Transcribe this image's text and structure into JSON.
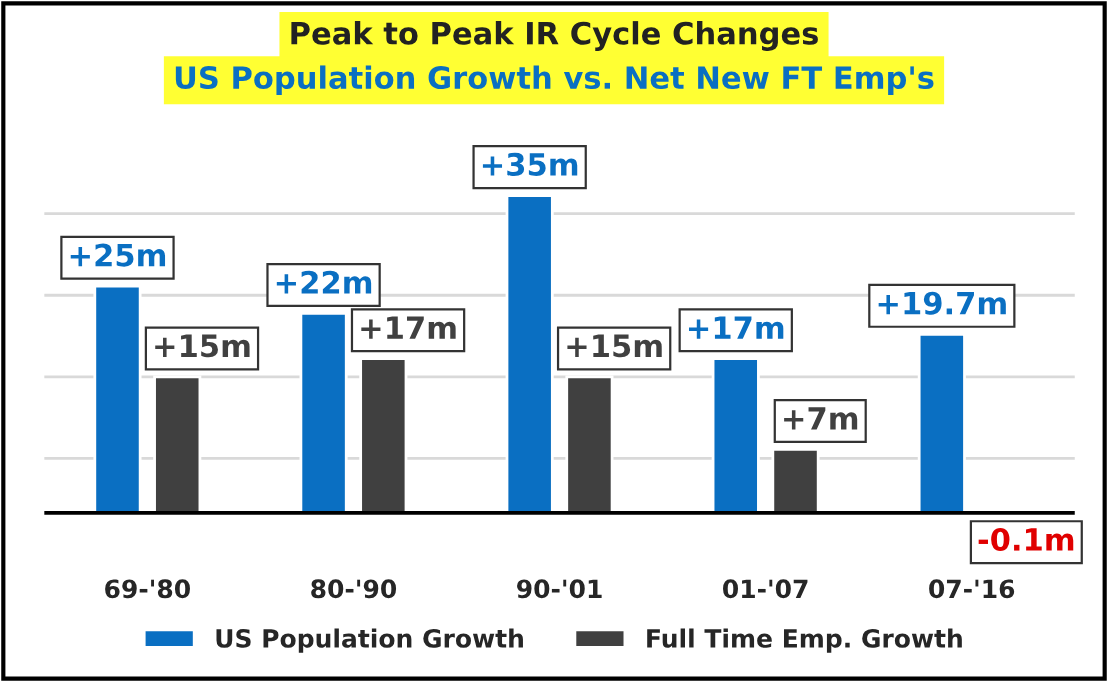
{
  "chart_data": {
    "type": "bar",
    "title": "Peak to Peak IR Cycle Changes",
    "subtitle": "US Population Growth vs. Net New FT Emp's",
    "categories": [
      "69-'80",
      "80-'90",
      "90-'01",
      "01-'07",
      "07-'16"
    ],
    "series": [
      {
        "name": "US Population Growth",
        "color": "#0a6fc2",
        "values": [
          25,
          22,
          35,
          17,
          19.7
        ],
        "value_labels": [
          "+25m",
          "+22m",
          "+35m",
          "+17m",
          "+19.7m"
        ]
      },
      {
        "name": "Full Time Emp. Growth",
        "color": "#404040",
        "values": [
          15,
          17,
          15,
          7,
          -0.1
        ],
        "value_labels": [
          "+15m",
          "+17m",
          "+15m",
          "+7m",
          "-0.1m"
        ]
      }
    ],
    "yticks": [
      {
        "value": 6,
        "label": null
      },
      {
        "value": 15,
        "label": null
      },
      {
        "value": 24,
        "label": null
      },
      {
        "value": 33,
        "label": null
      }
    ],
    "ref_lines": [
      {
        "axis": "y",
        "value": 0,
        "label": null,
        "color": "#000000"
      }
    ],
    "grid": "y",
    "legend": "bottom",
    "tick_labels": "x"
  }
}
